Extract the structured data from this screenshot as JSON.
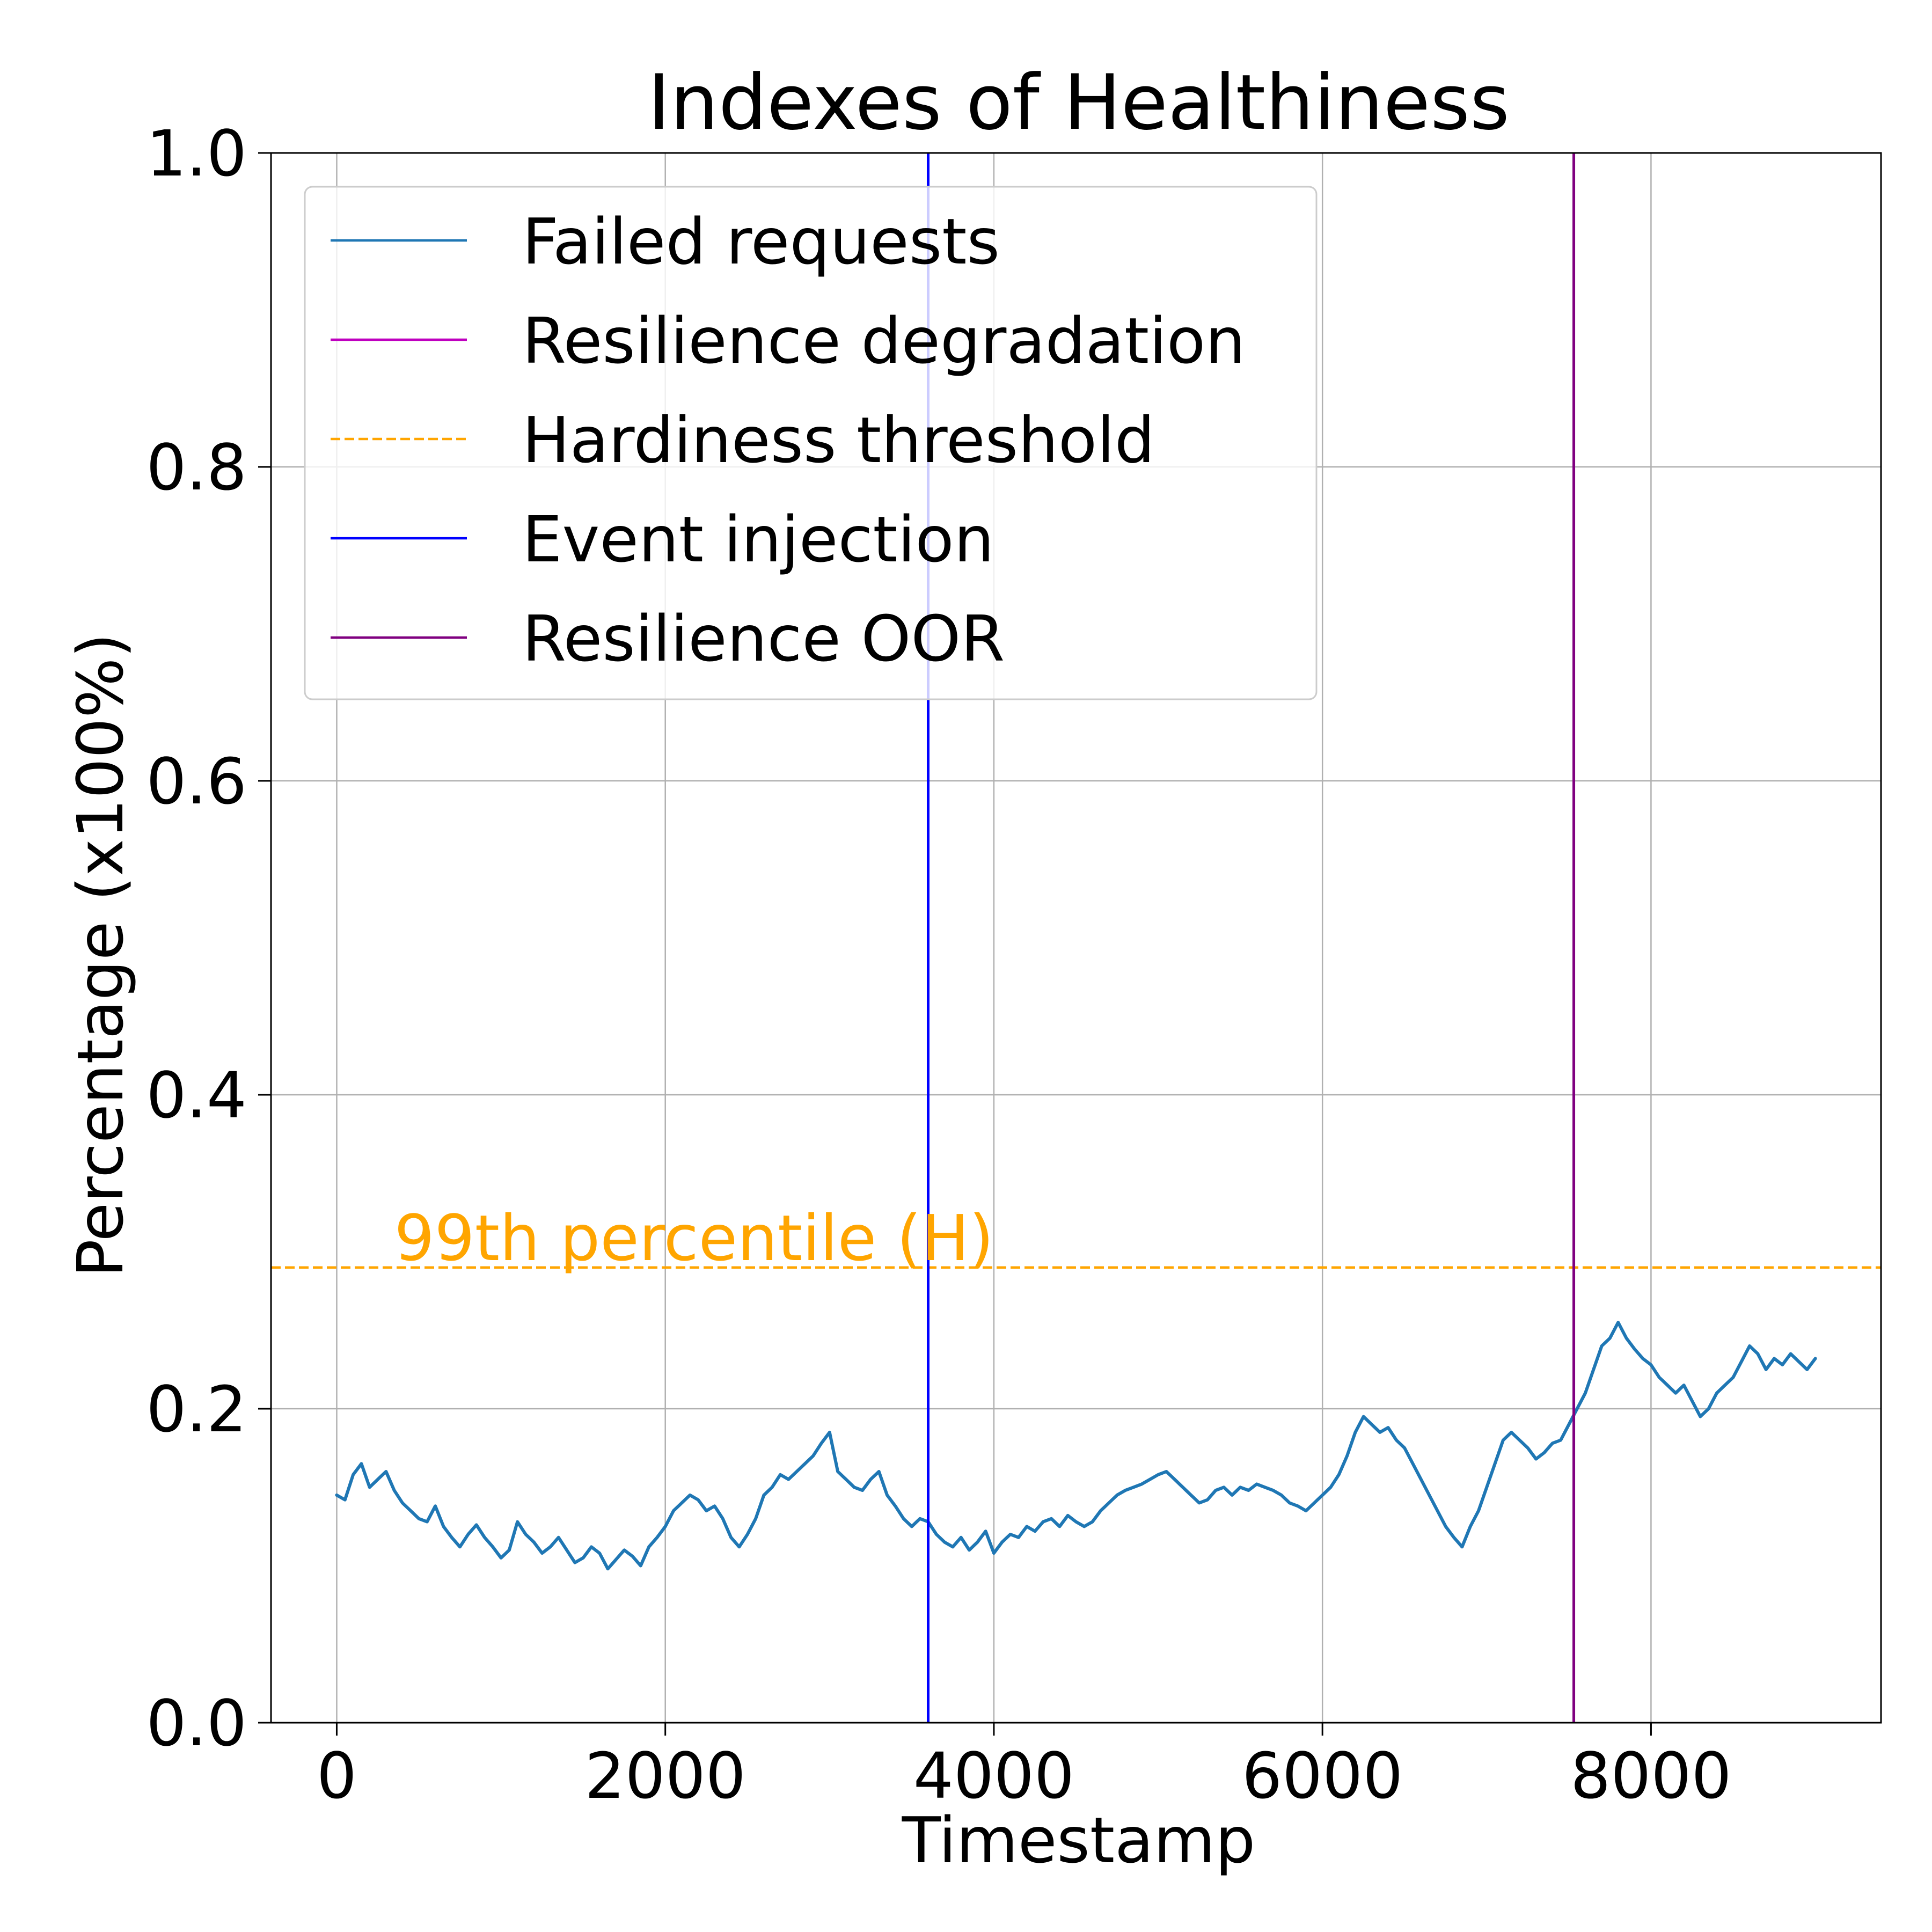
{
  "chart_data": {
    "type": "line",
    "title": "Indexes of Healthiness",
    "xlabel": "Timestamp",
    "ylabel": "Percentage (x100%)",
    "xlim": [
      -400,
      9400
    ],
    "ylim": [
      0.0,
      1.0
    ],
    "xticks": [
      0,
      2000,
      4000,
      6000,
      8000
    ],
    "xtick_labels": [
      "0",
      "2000",
      "4000",
      "6000",
      "8000"
    ],
    "yticks": [
      0.0,
      0.2,
      0.4,
      0.6,
      0.8,
      1.0
    ],
    "ytick_labels": [
      "0.0",
      "0.2",
      "0.4",
      "0.6",
      "0.8",
      "1.0"
    ],
    "grid": true,
    "legend_position": "upper-left",
    "series": [
      {
        "name": "Failed requests",
        "style": "solid",
        "color": "#1f77b4",
        "x": [
          0,
          50,
          100,
          150,
          200,
          250,
          300,
          350,
          400,
          450,
          500,
          550,
          600,
          650,
          700,
          750,
          800,
          850,
          900,
          950,
          1000,
          1050,
          1100,
          1150,
          1200,
          1250,
          1300,
          1350,
          1400,
          1450,
          1500,
          1550,
          1600,
          1650,
          1700,
          1750,
          1800,
          1850,
          1900,
          1950,
          2000,
          2050,
          2100,
          2150,
          2200,
          2250,
          2300,
          2350,
          2400,
          2450,
          2500,
          2550,
          2600,
          2650,
          2700,
          2750,
          2800,
          2850,
          2900,
          2950,
          3000,
          3050,
          3100,
          3150,
          3200,
          3250,
          3300,
          3350,
          3400,
          3450,
          3500,
          3550,
          3600,
          3650,
          3700,
          3750,
          3800,
          3850,
          3900,
          3950,
          4000,
          4050,
          4100,
          4150,
          4200,
          4250,
          4300,
          4350,
          4400,
          4450,
          4500,
          4550,
          4600,
          4650,
          4700,
          4750,
          4800,
          4850,
          4900,
          4950,
          5000,
          5050,
          5100,
          5150,
          5200,
          5250,
          5300,
          5350,
          5400,
          5450,
          5500,
          5550,
          5600,
          5650,
          5700,
          5750,
          5800,
          5850,
          5900,
          5950,
          6000,
          6050,
          6100,
          6150,
          6200,
          6250,
          6300,
          6350,
          6400,
          6450,
          6500,
          6550,
          6600,
          6650,
          6700,
          6750,
          6800,
          6850,
          6900,
          6950,
          7000,
          7050,
          7100,
          7150,
          7200,
          7250,
          7300,
          7350,
          7400,
          7450,
          7500,
          7550,
          7600,
          7650,
          7700,
          7750,
          7800,
          7850,
          7900,
          7950,
          8000,
          8050,
          8100,
          8150,
          8200,
          8250,
          8300,
          8350,
          8400,
          8450,
          8500,
          8550,
          8600,
          8650,
          8700,
          8750,
          8800,
          8850,
          8900,
          8950,
          9000
        ],
        "values": [
          0.145,
          0.142,
          0.158,
          0.165,
          0.15,
          0.155,
          0.16,
          0.148,
          0.14,
          0.135,
          0.13,
          0.128,
          0.138,
          0.125,
          0.118,
          0.112,
          0.12,
          0.126,
          0.118,
          0.112,
          0.105,
          0.11,
          0.128,
          0.12,
          0.115,
          0.108,
          0.112,
          0.118,
          0.11,
          0.102,
          0.105,
          0.112,
          0.108,
          0.098,
          0.104,
          0.11,
          0.106,
          0.1,
          0.112,
          0.118,
          0.125,
          0.135,
          0.14,
          0.145,
          0.142,
          0.135,
          0.138,
          0.13,
          0.118,
          0.112,
          0.12,
          0.13,
          0.145,
          0.15,
          0.158,
          0.155,
          0.16,
          0.165,
          0.17,
          0.178,
          0.185,
          0.16,
          0.155,
          0.15,
          0.148,
          0.155,
          0.16,
          0.145,
          0.138,
          0.13,
          0.125,
          0.13,
          0.128,
          0.12,
          0.115,
          0.112,
          0.118,
          0.11,
          0.115,
          0.122,
          0.108,
          0.115,
          0.12,
          0.118,
          0.125,
          0.122,
          0.128,
          0.13,
          0.125,
          0.132,
          0.128,
          0.125,
          0.128,
          0.135,
          0.14,
          0.145,
          0.148,
          0.15,
          0.152,
          0.155,
          0.158,
          0.16,
          0.155,
          0.15,
          0.145,
          0.14,
          0.142,
          0.148,
          0.15,
          0.145,
          0.15,
          0.148,
          0.152,
          0.15,
          0.148,
          0.145,
          0.14,
          0.138,
          0.135,
          0.14,
          0.145,
          0.15,
          0.158,
          0.17,
          0.185,
          0.195,
          0.19,
          0.185,
          0.188,
          0.18,
          0.175,
          0.165,
          0.155,
          0.145,
          0.135,
          0.125,
          0.118,
          0.112,
          0.125,
          0.135,
          0.15,
          0.165,
          0.18,
          0.185,
          0.18,
          0.175,
          0.168,
          0.172,
          0.178,
          0.18,
          0.19,
          0.2,
          0.21,
          0.225,
          0.24,
          0.245,
          0.255,
          0.245,
          0.238,
          0.232,
          0.228,
          0.22,
          0.215,
          0.21,
          0.215,
          0.205,
          0.195,
          0.2,
          0.21,
          0.215,
          0.22,
          0.23,
          0.24,
          0.235,
          0.225,
          0.232,
          0.228,
          0.235,
          0.23,
          0.225,
          0.232
        ]
      },
      {
        "name": "Resilience degradation",
        "style": "solid",
        "color": "#bf00bf",
        "x": [],
        "values": []
      }
    ],
    "annotation_lines": [
      {
        "name": "Hardiness threshold",
        "orientation": "horizontal",
        "value": 0.29,
        "style": "dashed",
        "color": "#ffa500"
      },
      {
        "name": "Event injection",
        "orientation": "vertical",
        "value": 3600,
        "style": "solid",
        "color": "#0000ff"
      },
      {
        "name": "Resilience OOR",
        "orientation": "vertical",
        "value": 7530,
        "style": "solid",
        "color": "#800080"
      }
    ],
    "annotations": [
      {
        "text": "99th percentile (H)",
        "x": 350,
        "y": 0.305,
        "color": "#ffa500"
      }
    ],
    "legend_entries": [
      {
        "label": "Failed requests",
        "color": "#1f77b4",
        "style": "solid"
      },
      {
        "label": "Resilience degradation",
        "color": "#bf00bf",
        "style": "solid"
      },
      {
        "label": "Hardiness threshold",
        "color": "#ffa500",
        "style": "dashed"
      },
      {
        "label": "Event injection",
        "color": "#0000ff",
        "style": "solid"
      },
      {
        "label": "Resilience OOR",
        "color": "#800080",
        "style": "solid"
      }
    ]
  }
}
